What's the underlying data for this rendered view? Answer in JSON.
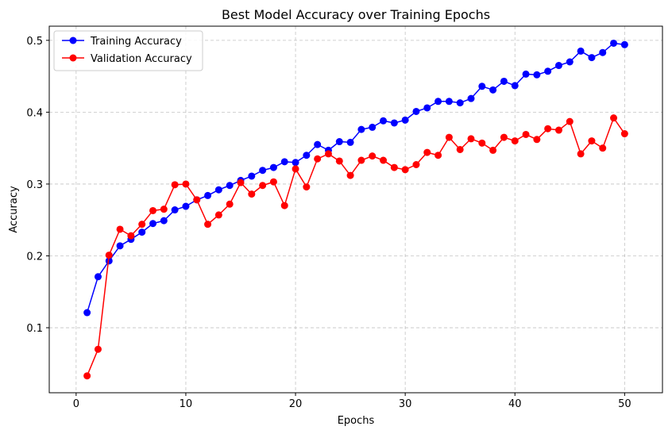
{
  "chart_data": {
    "type": "line",
    "title": "Best Model Accuracy over Training Epochs",
    "xlabel": "Epochs",
    "ylabel": "Accuracy",
    "xlim": [
      -2.45,
      53.45
    ],
    "ylim": [
      0.0095,
      0.5197
    ],
    "xticks": [
      0,
      10,
      20,
      30,
      40,
      50
    ],
    "yticks": [
      0.1,
      0.2,
      0.3,
      0.4,
      0.5
    ],
    "xtick_labels": [
      "0",
      "10",
      "20",
      "30",
      "40",
      "50"
    ],
    "ytick_labels": [
      "0.1",
      "0.2",
      "0.3",
      "0.4",
      "0.5"
    ],
    "grid": true,
    "legend_position": "upper-left",
    "x": [
      1,
      2,
      3,
      4,
      5,
      6,
      7,
      8,
      9,
      10,
      11,
      12,
      13,
      14,
      15,
      16,
      17,
      18,
      19,
      20,
      21,
      22,
      23,
      24,
      25,
      26,
      27,
      28,
      29,
      30,
      31,
      32,
      33,
      34,
      35,
      36,
      37,
      38,
      39,
      40,
      41,
      42,
      43,
      44,
      45,
      46,
      47,
      48,
      49,
      50
    ],
    "series": [
      {
        "name": "Training Accuracy",
        "color": "#0000ff",
        "values": [
          0.121,
          0.171,
          0.193,
          0.214,
          0.223,
          0.233,
          0.245,
          0.249,
          0.264,
          0.269,
          0.278,
          0.284,
          0.292,
          0.298,
          0.305,
          0.311,
          0.319,
          0.323,
          0.331,
          0.33,
          0.34,
          0.355,
          0.347,
          0.359,
          0.358,
          0.376,
          0.379,
          0.388,
          0.385,
          0.389,
          0.401,
          0.406,
          0.415,
          0.415,
          0.413,
          0.419,
          0.436,
          0.431,
          0.443,
          0.437,
          0.453,
          0.452,
          0.457,
          0.465,
          0.47,
          0.485,
          0.476,
          0.483,
          0.496,
          0.494
        ]
      },
      {
        "name": "Validation Accuracy",
        "color": "#ff0000",
        "values": [
          0.033,
          0.07,
          0.201,
          0.237,
          0.228,
          0.244,
          0.263,
          0.265,
          0.299,
          0.3,
          0.278,
          0.244,
          0.257,
          0.272,
          0.302,
          0.286,
          0.298,
          0.303,
          0.27,
          0.321,
          0.296,
          0.335,
          0.342,
          0.332,
          0.312,
          0.333,
          0.339,
          0.333,
          0.323,
          0.32,
          0.327,
          0.344,
          0.34,
          0.365,
          0.348,
          0.363,
          0.357,
          0.347,
          0.365,
          0.36,
          0.369,
          0.362,
          0.377,
          0.375,
          0.387,
          0.342,
          0.36,
          0.35,
          0.392,
          0.37
        ]
      }
    ]
  }
}
